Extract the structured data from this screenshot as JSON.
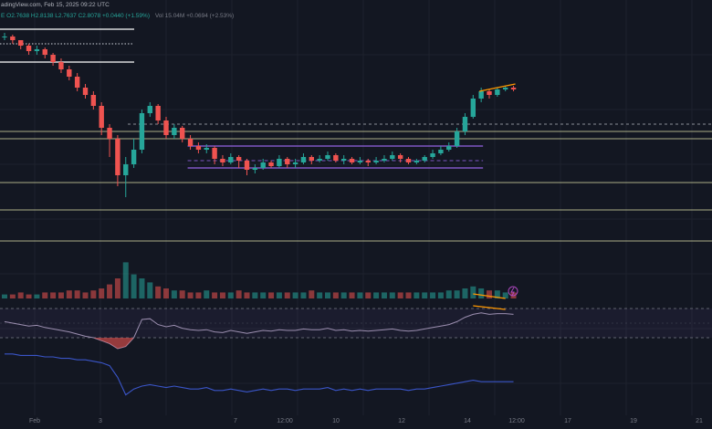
{
  "header": {
    "source": "adingView.com, Feb 15, 2025 09:22 UTC",
    "ohlc": "E O2.7638 H2.8138 L2.7637 C2.8078 +0.0440 (+1.59%)",
    "volume": "Vol 15.04M +0.0694 (+2.53%)"
  },
  "colors": {
    "background": "#131722",
    "up": "#26a69a",
    "down": "#ef5350",
    "level": "#d1d4a0",
    "range": "#7e57c2",
    "trend": "#ff9800",
    "rsi_line": "#9c8fb0",
    "lower_line": "#3a55c8"
  },
  "chart_data": {
    "type": "candlestick",
    "x_ticks": [
      "Feb",
      "3",
      "7",
      "12:00",
      "10",
      "12",
      "14",
      "12:00",
      "17",
      "19",
      "21"
    ],
    "grid": true,
    "legend": "none",
    "candles": [
      [
        100,
        100,
        102,
        98
      ],
      [
        100,
        98,
        101,
        96
      ],
      [
        98,
        95,
        98,
        93
      ],
      [
        95,
        92,
        96,
        90
      ],
      [
        92,
        93,
        95,
        90
      ],
      [
        93,
        90,
        94,
        88
      ],
      [
        90,
        86,
        91,
        84
      ],
      [
        86,
        82,
        88,
        80
      ],
      [
        82,
        78,
        84,
        76
      ],
      [
        78,
        72,
        80,
        70
      ],
      [
        72,
        68,
        74,
        66
      ],
      [
        68,
        62,
        70,
        60
      ],
      [
        62,
        50,
        64,
        46
      ],
      [
        50,
        44,
        52,
        34
      ],
      [
        44,
        24,
        46,
        18
      ],
      [
        24,
        30,
        34,
        12
      ],
      [
        30,
        38,
        44,
        28
      ],
      [
        38,
        58,
        60,
        36
      ],
      [
        58,
        62,
        64,
        56
      ],
      [
        62,
        54,
        63,
        52
      ],
      [
        54,
        46,
        56,
        44
      ],
      [
        46,
        50,
        52,
        44
      ],
      [
        50,
        44,
        51,
        42
      ],
      [
        44,
        40,
        46,
        38
      ],
      [
        40,
        38,
        42,
        36
      ],
      [
        38,
        39,
        41,
        36
      ],
      [
        39,
        33,
        40,
        30
      ],
      [
        33,
        31,
        35,
        29
      ],
      [
        31,
        34,
        36,
        30
      ],
      [
        34,
        32,
        35,
        28
      ],
      [
        32,
        27,
        33,
        24
      ],
      [
        27,
        28,
        30,
        25
      ],
      [
        28,
        31,
        33,
        27
      ],
      [
        31,
        29,
        32,
        28
      ],
      [
        29,
        33,
        35,
        28
      ],
      [
        33,
        30,
        34,
        28
      ],
      [
        30,
        31,
        33,
        28
      ],
      [
        31,
        34,
        36,
        30
      ],
      [
        34,
        32,
        35,
        30
      ],
      [
        32,
        33,
        35,
        31
      ],
      [
        33,
        35,
        37,
        32
      ],
      [
        35,
        32,
        36,
        31
      ],
      [
        32,
        33,
        35,
        30
      ],
      [
        33,
        31,
        34,
        30
      ],
      [
        31,
        32,
        34,
        30
      ],
      [
        32,
        31,
        33,
        29
      ],
      [
        31,
        32,
        34,
        30
      ],
      [
        32,
        33,
        35,
        31
      ],
      [
        33,
        35,
        37,
        32
      ],
      [
        35,
        33,
        36,
        31
      ],
      [
        33,
        31,
        34,
        30
      ],
      [
        31,
        32,
        33,
        30
      ],
      [
        32,
        34,
        35,
        31
      ],
      [
        34,
        36,
        38,
        33
      ],
      [
        36,
        38,
        40,
        35
      ],
      [
        38,
        40,
        42,
        37
      ],
      [
        40,
        48,
        50,
        39
      ],
      [
        48,
        56,
        58,
        46
      ],
      [
        56,
        66,
        68,
        55
      ],
      [
        66,
        70,
        72,
        64
      ],
      [
        70,
        68,
        71,
        66
      ],
      [
        68,
        71,
        72,
        67
      ],
      [
        71,
        72,
        73,
        70
      ],
      [
        72,
        71,
        73,
        70
      ]
    ],
    "volume": [
      2,
      2,
      3,
      2,
      2,
      3,
      3,
      3,
      4,
      4,
      3,
      4,
      5,
      7,
      10,
      18,
      12,
      10,
      8,
      6,
      5,
      4,
      4,
      3,
      3,
      4,
      3,
      3,
      3,
      4,
      3,
      3,
      3,
      3,
      3,
      3,
      3,
      3,
      4,
      3,
      3,
      3,
      3,
      3,
      3,
      3,
      3,
      3,
      3,
      3,
      3,
      3,
      3,
      3,
      3,
      4,
      4,
      5,
      6,
      5,
      4,
      4,
      3,
      3
    ],
    "rsi": [
      52,
      50,
      48,
      46,
      47,
      44,
      42,
      40,
      38,
      35,
      32,
      30,
      26,
      22,
      15,
      18,
      30,
      55,
      56,
      48,
      45,
      47,
      43,
      41,
      40,
      41,
      38,
      37,
      40,
      38,
      36,
      38,
      40,
      39,
      41,
      40,
      40,
      42,
      41,
      41,
      43,
      40,
      41,
      39,
      40,
      39,
      40,
      41,
      42,
      40,
      39,
      40,
      42,
      44,
      46,
      48,
      52,
      58,
      62,
      64,
      62,
      63,
      63,
      62
    ],
    "lower_indicator": [
      62,
      62,
      61,
      61,
      61,
      60,
      60,
      59,
      59,
      58,
      58,
      57,
      56,
      54,
      46,
      34,
      38,
      40,
      41,
      40,
      39,
      40,
      39,
      38,
      38,
      39,
      37,
      37,
      38,
      37,
      36,
      37,
      38,
      37,
      38,
      38,
      37,
      38,
      38,
      38,
      39,
      37,
      38,
      37,
      38,
      37,
      38,
      38,
      38,
      38,
      37,
      38,
      38,
      39,
      40,
      41,
      42,
      43,
      44,
      43,
      43,
      43,
      43,
      43
    ],
    "horizontal_levels": [
      48,
      44,
      20,
      5,
      -12
    ],
    "range_box": [
      40,
      28
    ],
    "ylim": [
      -30,
      110
    ]
  }
}
